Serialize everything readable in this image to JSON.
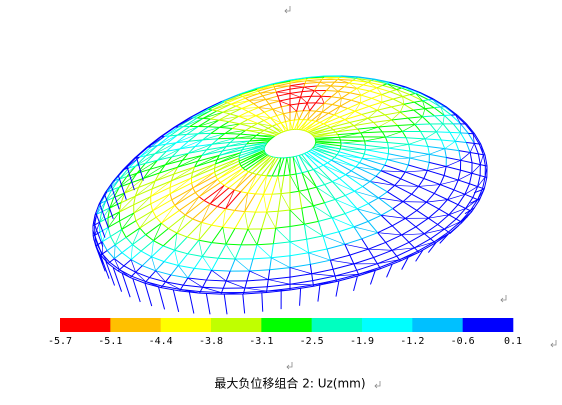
{
  "legend": {
    "labels": [
      "-5.7",
      "-5.1",
      "-4.4",
      "-3.8",
      "-3.1",
      "-2.5",
      "-1.9",
      "-1.2",
      "-0.6",
      "0.1"
    ],
    "colors": [
      "#ff0000",
      "#ffc000",
      "#ffff00",
      "#c0ff00",
      "#00ff00",
      "#00ffc0",
      "#00ffff",
      "#00c0ff",
      "#0000ff"
    ]
  },
  "caption": "最大负位移组合 2: Uz(mm)"
}
